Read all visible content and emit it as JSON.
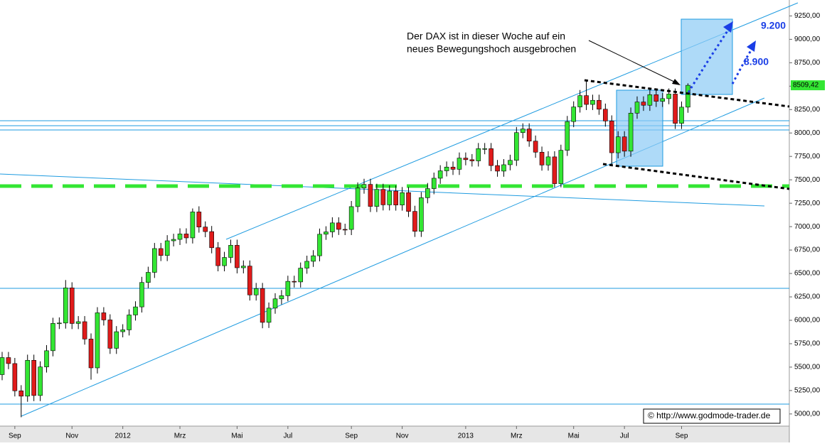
{
  "chart_data": {
    "type": "candlestick",
    "categories": [
      null,
      null,
      "Sep",
      null,
      null,
      null,
      null,
      null,
      null,
      null,
      null,
      "Nov",
      null,
      null,
      null,
      null,
      null,
      null,
      null,
      "2012",
      null,
      null,
      null,
      null,
      null,
      null,
      null,
      null,
      "Mrz",
      null,
      null,
      null,
      null,
      null,
      null,
      null,
      null,
      "Mai",
      null,
      null,
      null,
      null,
      null,
      null,
      null,
      "Jul",
      null,
      null,
      null,
      null,
      null,
      null,
      null,
      null,
      null,
      "Sep",
      null,
      null,
      null,
      null,
      null,
      null,
      null,
      "Nov",
      null,
      null,
      null,
      null,
      null,
      null,
      null,
      null,
      null,
      "2013",
      null,
      null,
      null,
      null,
      null,
      null,
      null,
      "Mrz",
      null,
      null,
      null,
      null,
      null,
      null,
      null,
      null,
      "Mai",
      null,
      null,
      null,
      null,
      null,
      null,
      null,
      "Jul",
      null,
      null,
      null,
      null,
      null,
      null,
      null,
      null,
      "Sep",
      null
    ],
    "open": [
      5420,
      5602,
      5538,
      5247,
      5190,
      5573,
      5197,
      5502,
      5675,
      5967,
      5971,
      6346,
      5966,
      5985,
      5800,
      5492,
      6080,
      6004,
      5701,
      5878,
      5898,
      6057,
      6143,
      6404,
      6512,
      6766,
      6692,
      6849,
      6864,
      6922,
      6880,
      7157,
      6996,
      6947,
      6775,
      6583,
      6671,
      6801,
      6561,
      6579,
      6271,
      6339,
      5978,
      6130,
      6229,
      6263,
      6416,
      6410,
      6557,
      6630,
      6689,
      6919,
      6944,
      7040,
      6971,
      6970,
      7214,
      7412,
      7451,
      7216,
      7398,
      7233,
      7380,
      7231,
      7363,
      7163,
      6950,
      7309,
      7406,
      7517,
      7596,
      7636,
      7612,
      7732,
      7715,
      7702,
      7833,
      7833,
      7652,
      7593,
      7661,
      7708,
      8004,
      8043,
      7913,
      7795,
      7658,
      7745,
      7459,
      7815,
      8122,
      8278,
      8399,
      8305,
      8349,
      8254,
      8128,
      7789,
      7959,
      7806,
      8212,
      8331,
      8296,
      8409,
      8338,
      8367,
      8416,
      8103,
      8276
    ],
    "high": [
      5662,
      5662,
      5598,
      5307,
      5633,
      5633,
      5562,
      5735,
      6027,
      6031,
      6430,
      6406,
      6045,
      6045,
      5860,
      6140,
      6140,
      6064,
      5938,
      5958,
      6117,
      6203,
      6464,
      6572,
      6826,
      6826,
      6909,
      6924,
      6982,
      6982,
      7194,
      7217,
      7056,
      7007,
      6835,
      6731,
      6861,
      6861,
      6639,
      6639,
      6399,
      6399,
      6190,
      6289,
      6323,
      6476,
      6476,
      6617,
      6690,
      6749,
      6979,
      7004,
      7100,
      7100,
      7031,
      7274,
      7472,
      7511,
      7511,
      7458,
      7458,
      7440,
      7440,
      7423,
      7423,
      7223,
      7369,
      7466,
      7577,
      7656,
      7696,
      7696,
      7792,
      7792,
      7775,
      7893,
      7893,
      7893,
      7712,
      7721,
      7768,
      8064,
      8103,
      8103,
      7973,
      7855,
      7805,
      7805,
      7875,
      8182,
      8338,
      8459,
      8557,
      8409,
      8409,
      8314,
      8188,
      8019,
      8019,
      8272,
      8391,
      8391,
      8469,
      8469,
      8427,
      8476,
      8476,
      8336,
      8530
    ],
    "low": [
      5360,
      5478,
      5187,
      4965,
      5130,
      5137,
      5137,
      5442,
      5615,
      5907,
      5911,
      5906,
      5906,
      5740,
      5366,
      5432,
      5944,
      5641,
      5641,
      5818,
      5838,
      5997,
      6083,
      6344,
      6452,
      6632,
      6632,
      6789,
      6804,
      6820,
      6820,
      6936,
      6887,
      6715,
      6523,
      6523,
      6611,
      6501,
      6501,
      6211,
      6211,
      5915,
      5918,
      6070,
      6169,
      6203,
      6350,
      6350,
      6497,
      6570,
      6629,
      6859,
      6884,
      6911,
      6910,
      6910,
      7154,
      7352,
      7156,
      7156,
      7173,
      7173,
      7171,
      7171,
      7103,
      6890,
      6890,
      7249,
      7346,
      7457,
      7536,
      7552,
      7552,
      7655,
      7642,
      7642,
      7773,
      7592,
      7533,
      7533,
      7601,
      7648,
      7944,
      7853,
      7735,
      7598,
      7598,
      7420,
      7420,
      7755,
      8062,
      8218,
      8245,
      8245,
      8194,
      8068,
      7655,
      7729,
      7746,
      7746,
      8152,
      8236,
      8236,
      8278,
      8278,
      8307,
      8043,
      8043,
      8216
    ],
    "close": [
      5602,
      5538,
      5247,
      5190,
      5573,
      5197,
      5502,
      5675,
      5967,
      5971,
      6346,
      5966,
      5985,
      5800,
      5492,
      6080,
      6004,
      5701,
      5878,
      5898,
      6057,
      6143,
      6404,
      6512,
      6766,
      6692,
      6849,
      6864,
      6922,
      6880,
      7157,
      6996,
      6947,
      6775,
      6583,
      6671,
      6801,
      6561,
      6579,
      6271,
      6339,
      5978,
      6130,
      6229,
      6263,
      6416,
      6410,
      6557,
      6630,
      6689,
      6919,
      6944,
      7040,
      6971,
      6970,
      7214,
      7412,
      7451,
      7216,
      7398,
      7233,
      7380,
      7231,
      7363,
      7163,
      6950,
      7309,
      7406,
      7517,
      7596,
      7636,
      7612,
      7732,
      7715,
      7702,
      7833,
      7833,
      7652,
      7593,
      7661,
      7708,
      8004,
      8043,
      7913,
      7795,
      7658,
      7745,
      7459,
      7815,
      8122,
      8278,
      8399,
      8305,
      8349,
      8254,
      8128,
      7789,
      7959,
      7806,
      8212,
      8331,
      8296,
      8409,
      8338,
      8367,
      8416,
      8103,
      8276,
      8509
    ],
    "up_color": "#33e633",
    "down_color": "#e01b1b",
    "ylim": [
      4870,
      9420
    ],
    "yticks": [
      {
        "value": 5000,
        "label": "5000,00"
      },
      {
        "value": 5250,
        "label": "5250,00"
      },
      {
        "value": 5500,
        "label": "5500,00"
      },
      {
        "value": 5750,
        "label": "5750,00"
      },
      {
        "value": 6000,
        "label": "6000,00"
      },
      {
        "value": 6250,
        "label": "6250,00"
      },
      {
        "value": 6500,
        "label": "6500,00"
      },
      {
        "value": 6750,
        "label": "6750,00"
      },
      {
        "value": 7000,
        "label": "7000,00"
      },
      {
        "value": 7250,
        "label": "7250,00"
      },
      {
        "value": 7500,
        "label": "7500,00"
      },
      {
        "value": 7750,
        "label": "7750,00"
      },
      {
        "value": 8000,
        "label": "8000,00"
      },
      {
        "value": 8250,
        "label": "8250,00"
      },
      {
        "value": 8500,
        "label": "8500,00"
      },
      {
        "value": 8750,
        "label": "8750,00"
      },
      {
        "value": 9000,
        "label": "9000,00"
      },
      {
        "value": 9250,
        "label": "9250,00"
      }
    ],
    "last_price": {
      "value": 8509.42,
      "label": "8509,42"
    },
    "annotation_lines": [
      "Der DAX ist in dieser Woche auf ein",
      "neues Bewegungshoch ausgebrochen"
    ],
    "target_labels": [
      "9.200",
      "8.900"
    ],
    "source": "© http://www.godmode-trader.de"
  }
}
